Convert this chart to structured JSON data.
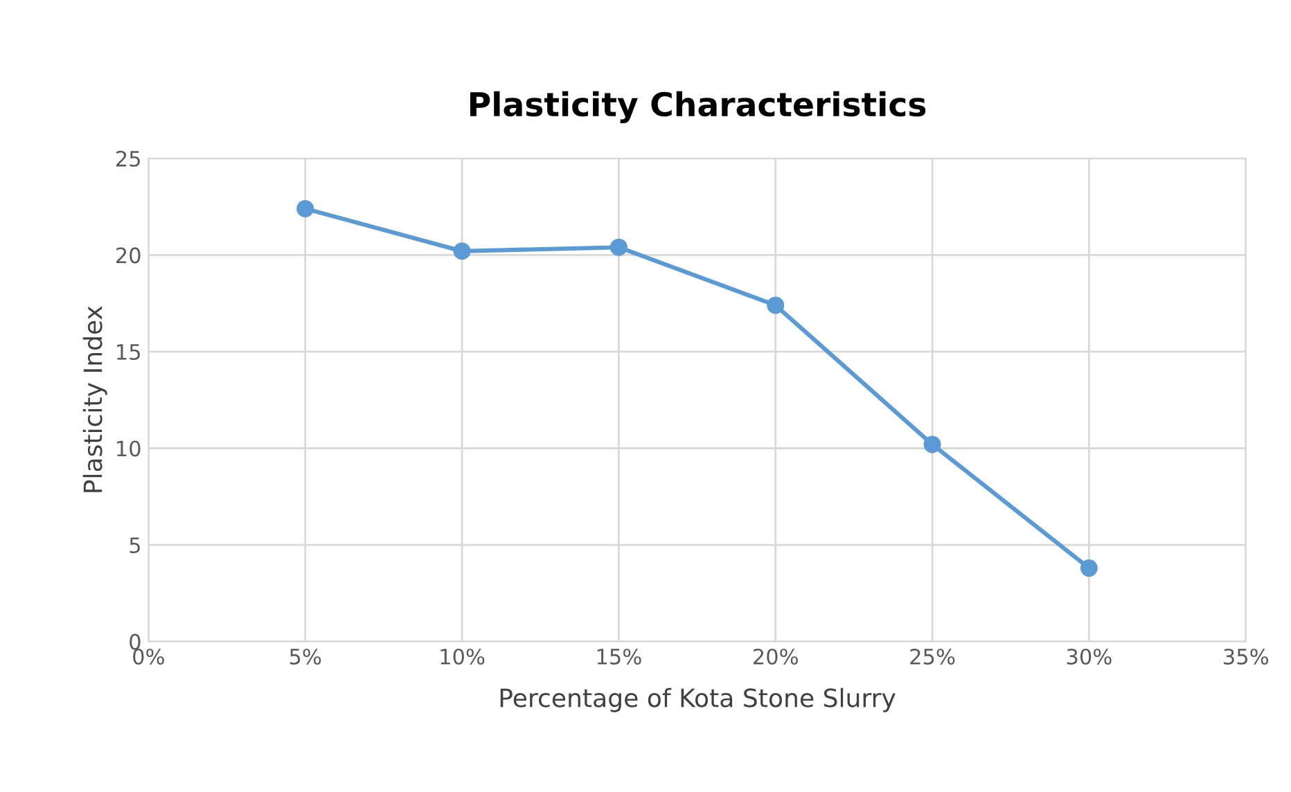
{
  "chart_data": {
    "type": "line",
    "title": "Plasticity Characteristics",
    "xlabel": "Percentage of Kota Stone Slurry",
    "ylabel": "Plasticity Index",
    "x": [
      5,
      10,
      15,
      20,
      25,
      30
    ],
    "series": [
      {
        "color": "#5b9bd5",
        "values": [
          22.4,
          20.2,
          20.4,
          17.4,
          10.2,
          3.8
        ]
      }
    ],
    "xlim": [
      0,
      35
    ],
    "xticks": [
      {
        "value": 0,
        "label": "0%"
      },
      {
        "value": 5,
        "label": "5%"
      },
      {
        "value": 10,
        "label": "10%"
      },
      {
        "value": 15,
        "label": "15%"
      },
      {
        "value": 20,
        "label": "20%"
      },
      {
        "value": 25,
        "label": "25%"
      },
      {
        "value": 30,
        "label": "30%"
      },
      {
        "value": 35,
        "label": "35%"
      }
    ],
    "ylim": [
      0,
      25
    ],
    "yticks": [
      0,
      5,
      10,
      15,
      20,
      25
    ],
    "grid": true,
    "marker": "circle",
    "line_style": "solid"
  }
}
